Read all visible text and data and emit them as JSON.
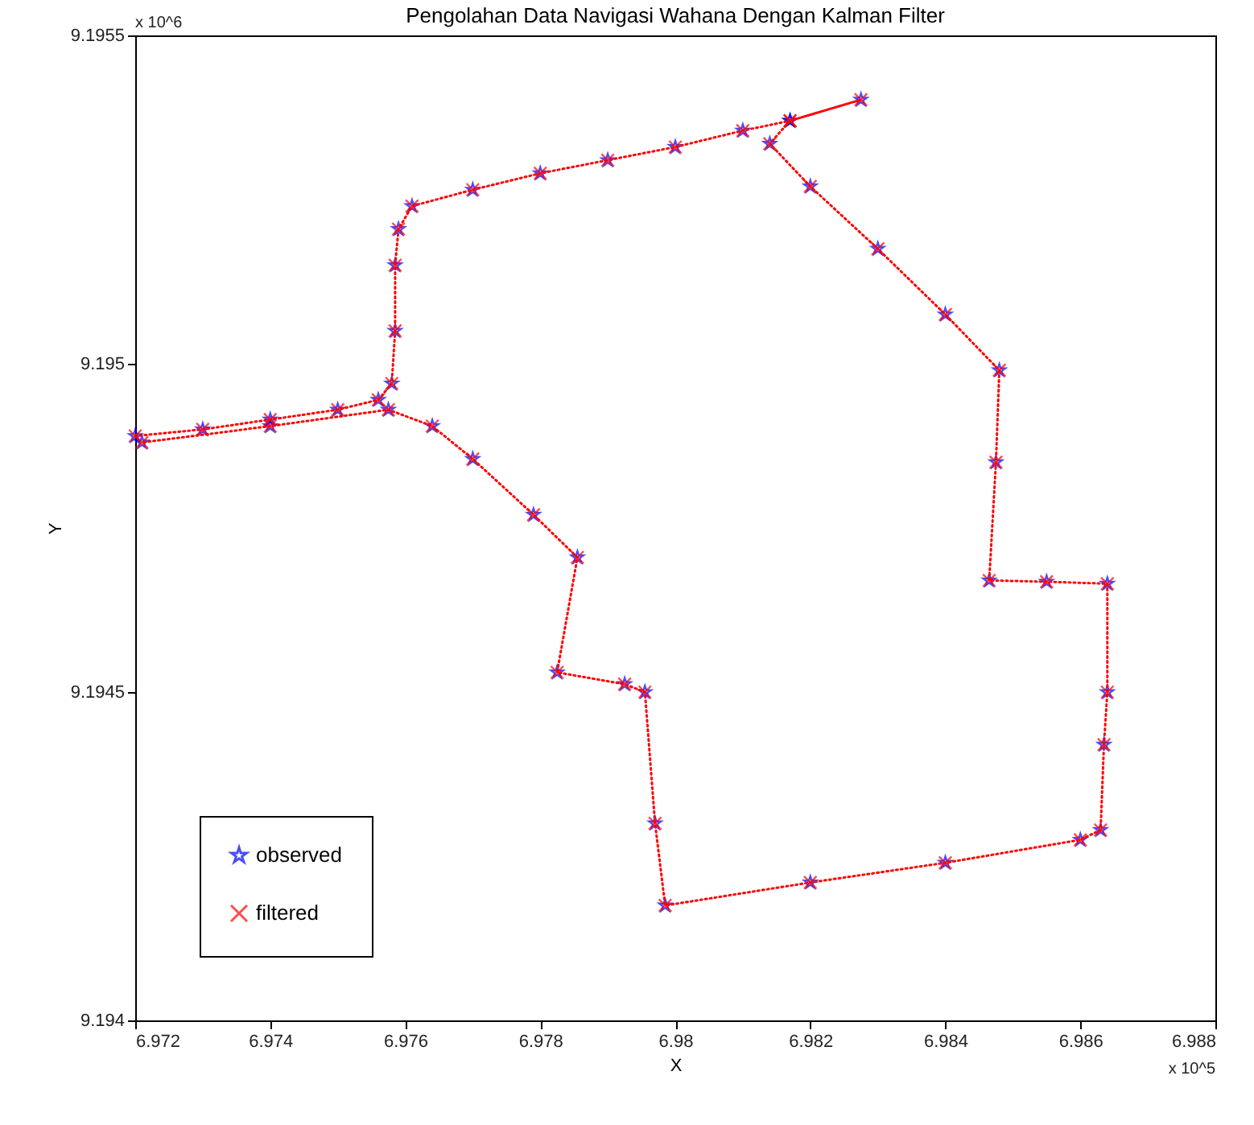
{
  "chart_data": {
    "type": "scatter",
    "title": "Pengolahan Data Navigasi Wahana Dengan Kalman Filter",
    "xlabel": "X",
    "ylabel": "Y",
    "x": [
      6.972,
      6.973,
      6.974,
      6.975,
      6.9756,
      6.9758,
      6.97585,
      6.97585,
      6.9759,
      6.9761,
      6.977,
      6.978,
      6.979,
      6.98,
      6.981,
      6.9817,
      6.98275,
      6.9817,
      6.9814,
      6.982,
      6.983,
      6.984,
      6.9848,
      6.98475,
      6.98465,
      6.9855,
      6.9864,
      6.9864,
      6.98635,
      6.9863,
      6.986,
      6.984,
      6.982,
      6.97985,
      6.9797,
      6.97955,
      6.97925,
      6.97825,
      6.97855,
      6.9779,
      6.977,
      6.9764,
      6.97575,
      6.974,
      6.9721
    ],
    "series": [
      {
        "name": "observed",
        "color": "#0000ff",
        "marker": "star",
        "values": [
          9.19489,
          9.1949,
          9.194915,
          9.19493,
          9.194945,
          9.19497,
          9.19505,
          9.19515,
          9.195205,
          9.19524,
          9.195265,
          9.19529,
          9.19531,
          9.19533,
          9.195355,
          9.19537,
          9.195402,
          9.19537,
          9.195335,
          9.19527,
          9.195175,
          9.195075,
          9.19499,
          9.19485,
          9.19467,
          9.194668,
          9.194665,
          9.1945,
          9.19442,
          9.19429,
          9.194275,
          9.19424,
          9.19421,
          9.194175,
          9.1943,
          9.1945,
          9.194512,
          9.19453,
          9.194705,
          9.19477,
          9.194855,
          9.194905,
          9.19493,
          9.194905,
          9.19488
        ]
      },
      {
        "name": "filtered",
        "type": "line",
        "color": "#ff0000",
        "marker": "cross",
        "line_style": "dotted",
        "values": [
          9.19489,
          9.1949,
          9.194915,
          9.19493,
          9.194945,
          9.19497,
          9.19505,
          9.19515,
          9.195205,
          9.19524,
          9.195265,
          9.19529,
          9.19531,
          9.19533,
          9.195355,
          9.19537,
          9.195402,
          9.19537,
          9.195335,
          9.19527,
          9.195175,
          9.195075,
          9.19499,
          9.19485,
          9.19467,
          9.194668,
          9.194665,
          9.1945,
          9.19442,
          9.19429,
          9.194275,
          9.19424,
          9.19421,
          9.194175,
          9.1943,
          9.1945,
          9.194512,
          9.19453,
          9.194705,
          9.19477,
          9.194855,
          9.194905,
          9.19493,
          9.194905,
          9.19488
        ]
      }
    ],
    "xlim": [
      6.972,
      6.988
    ],
    "xticks": [
      6.972,
      6.974,
      6.976,
      6.978,
      6.98,
      6.982,
      6.984,
      6.986,
      6.988
    ],
    "ylim": [
      9.194,
      9.1955
    ],
    "yticks": [
      9.194,
      9.1945,
      9.195,
      9.1955
    ],
    "annotations": [
      "x 10^6",
      "x 10^5"
    ],
    "legend": "bottom left",
    "grid": false
  }
}
